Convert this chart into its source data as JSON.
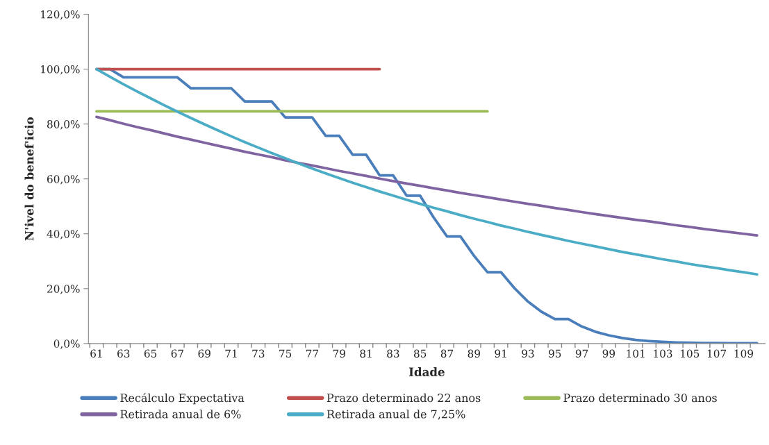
{
  "chart_data": {
    "type": "line",
    "xlabel": "Idade",
    "ylabel": "N'ivel do benef'icio",
    "categories": [
      "61",
      null,
      "63",
      null,
      "65",
      null,
      "67",
      null,
      "69",
      null,
      "71",
      null,
      "73",
      null,
      "75",
      null,
      "77",
      null,
      "79",
      null,
      "81",
      null,
      "83",
      null,
      "85",
      null,
      "87",
      null,
      "89",
      null,
      "91",
      null,
      "93",
      null,
      "95",
      null,
      "97",
      null,
      "99",
      null,
      "101",
      null,
      "103",
      null,
      "105",
      null,
      "107",
      null,
      "109",
      null
    ],
    "series": [
      {
        "name": "Recálculo Expectativa",
        "color": "#4a7ebb",
        "values": [
          100,
          100,
          97,
          97,
          97,
          97,
          97,
          93,
          93,
          93,
          93,
          88.2,
          88.2,
          88.2,
          82.4,
          82.4,
          82.4,
          75.7,
          75.7,
          68.8,
          68.8,
          61.3,
          61.3,
          53.9,
          53.9,
          46,
          39,
          39,
          32,
          26,
          26,
          20.2,
          15.3,
          11.6,
          8.9,
          8.9,
          6.2,
          4.3,
          3.0,
          2.0,
          1.3,
          0.9,
          0.6,
          0.4,
          0.3,
          0.2,
          0.2,
          0.1,
          0.1,
          0.1
        ]
      },
      {
        "name": "Prazo determinado 22 anos",
        "color": "#c0504d",
        "values": [
          100,
          100,
          100,
          100,
          100,
          100,
          100,
          100,
          100,
          100,
          100,
          100,
          100,
          100,
          100,
          100,
          100,
          100,
          100,
          100,
          100,
          100,
          null,
          null,
          null,
          null,
          null,
          null,
          null,
          null,
          null,
          null,
          null,
          null,
          null,
          null,
          null,
          null,
          null,
          null,
          null,
          null,
          null,
          null,
          null,
          null,
          null,
          null,
          null,
          null
        ]
      },
      {
        "name": "Prazo determinado 30 anos",
        "color": "#9bbb59",
        "values": [
          84.6,
          84.6,
          84.6,
          84.6,
          84.6,
          84.6,
          84.6,
          84.6,
          84.6,
          84.6,
          84.6,
          84.6,
          84.6,
          84.6,
          84.6,
          84.6,
          84.6,
          84.6,
          84.6,
          84.6,
          84.6,
          84.6,
          84.6,
          84.6,
          84.6,
          84.6,
          84.6,
          84.6,
          84.6,
          84.6,
          null,
          null,
          null,
          null,
          null,
          null,
          null,
          null,
          null,
          null,
          null,
          null,
          null,
          null,
          null,
          null,
          null,
          null,
          null,
          null
        ]
      },
      {
        "name": "Retirada anual de 6%",
        "color": "#8064a2",
        "values": [
          82.6,
          81.4,
          80.1,
          78.9,
          77.8,
          76.6,
          75.4,
          74.3,
          73.2,
          72.1,
          71.0,
          69.9,
          68.9,
          67.9,
          66.8,
          65.8,
          64.9,
          63.9,
          62.9,
          62.0,
          61.1,
          60.1,
          59.2,
          58.3,
          57.5,
          56.6,
          55.8,
          54.9,
          54.1,
          53.3,
          52.5,
          51.7,
          50.9,
          50.2,
          49.4,
          48.7,
          47.9,
          47.2,
          46.5,
          45.8,
          45.1,
          44.5,
          43.8,
          43.1,
          42.5,
          41.8,
          41.2,
          40.6,
          40.0,
          39.4
        ]
      },
      {
        "name": "Retirada anual de 7,25%",
        "color": "#4bacc6",
        "values": [
          100,
          97.2,
          94.5,
          91.9,
          89.4,
          86.9,
          84.5,
          82.2,
          79.9,
          77.7,
          75.5,
          73.4,
          71.4,
          69.4,
          67.5,
          65.6,
          63.8,
          62.0,
          60.3,
          58.6,
          57.0,
          55.4,
          53.9,
          52.4,
          50.9,
          49.5,
          48.2,
          46.8,
          45.5,
          44.3,
          43.0,
          41.9,
          40.7,
          39.6,
          38.5,
          37.4,
          36.4,
          35.4,
          34.4,
          33.4,
          32.5,
          31.6,
          30.7,
          29.9,
          29.0,
          28.2,
          27.5,
          26.7,
          26.0,
          25.2
        ]
      }
    ],
    "ylim": [
      0,
      120
    ],
    "yticks": [
      {
        "value": 0,
        "label": "0,0%"
      },
      {
        "value": 20,
        "label": "20,0%"
      },
      {
        "value": 40,
        "label": "40,0%"
      },
      {
        "value": 60,
        "label": "60,0%"
      },
      {
        "value": 80,
        "label": "80,0%"
      },
      {
        "value": 100,
        "label": "100,0%"
      },
      {
        "value": 120,
        "label": "120,0%"
      }
    ],
    "grid": false,
    "legend": "bottom",
    "marker": "none",
    "line_style": "solid"
  }
}
